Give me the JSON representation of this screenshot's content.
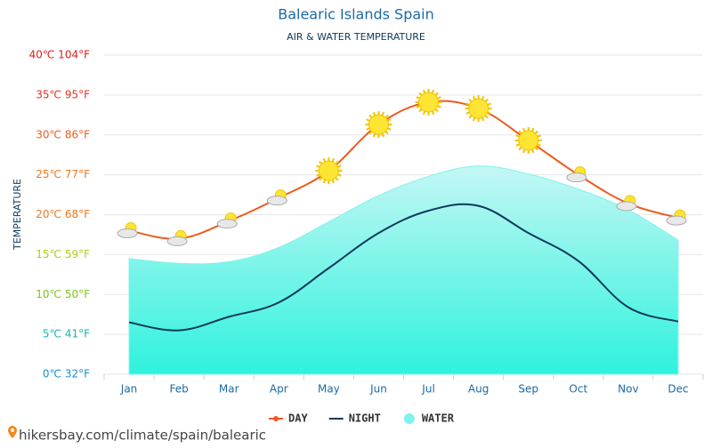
{
  "chart_data": {
    "type": "line",
    "title": "Balearic Islands Spain",
    "subtitle": "AIR & WATER TEMPERATURE",
    "y_label": "TEMPERATURE",
    "categories": [
      "Jan",
      "Feb",
      "Mar",
      "Apr",
      "May",
      "Jun",
      "Jul",
      "Aug",
      "Sep",
      "Oct",
      "Nov",
      "Dec"
    ],
    "series": [
      {
        "name": "DAY",
        "color": "#f05a1e",
        "style": "line",
        "values": [
          18.0,
          17.0,
          19.2,
          22.1,
          25.5,
          31.3,
          34.1,
          33.3,
          29.3,
          25.0,
          21.4,
          19.6
        ],
        "markers": [
          "cloud",
          "cloud",
          "cloud",
          "cloud",
          "sun",
          "sun",
          "sun",
          "sun",
          "sun",
          "cloud",
          "cloud",
          "cloud"
        ]
      },
      {
        "name": "NIGHT",
        "color": "#0e3a5c",
        "style": "line",
        "values": [
          6.5,
          5.5,
          7.2,
          9.0,
          13.3,
          17.7,
          20.5,
          21.1,
          17.7,
          14.2,
          8.4,
          6.6
        ]
      },
      {
        "name": "WATER",
        "color": "#7ff3ec",
        "style": "area",
        "values": [
          14.5,
          13.9,
          14.1,
          15.9,
          19.1,
          22.4,
          24.8,
          26.1,
          25.1,
          23.2,
          20.6,
          16.8
        ]
      }
    ],
    "ylim": [
      0,
      40
    ],
    "yticks": [
      {
        "value": 0,
        "label": "0℃ 32°F"
      },
      {
        "value": 5,
        "label": "5℃ 41°F"
      },
      {
        "value": 10,
        "label": "10℃ 50°F"
      },
      {
        "value": 15,
        "label": "15℃ 59°F"
      },
      {
        "value": 20,
        "label": "20℃ 68°F"
      },
      {
        "value": 25,
        "label": "25℃ 77°F"
      },
      {
        "value": 30,
        "label": "30℃ 86°F"
      },
      {
        "value": 35,
        "label": "35℃ 95°F"
      },
      {
        "value": 40,
        "label": "40℃ 104°F"
      }
    ],
    "ytick_colors": [
      "#1a8fc9",
      "#19b5b0",
      "#7fc41e",
      "#b6c81a",
      "#f0781e",
      "#f0781e",
      "#f05a1e",
      "#e8321e",
      "#e01e1e"
    ],
    "grid": true,
    "source": "hikersbay.com/climate/spain/balearic"
  }
}
